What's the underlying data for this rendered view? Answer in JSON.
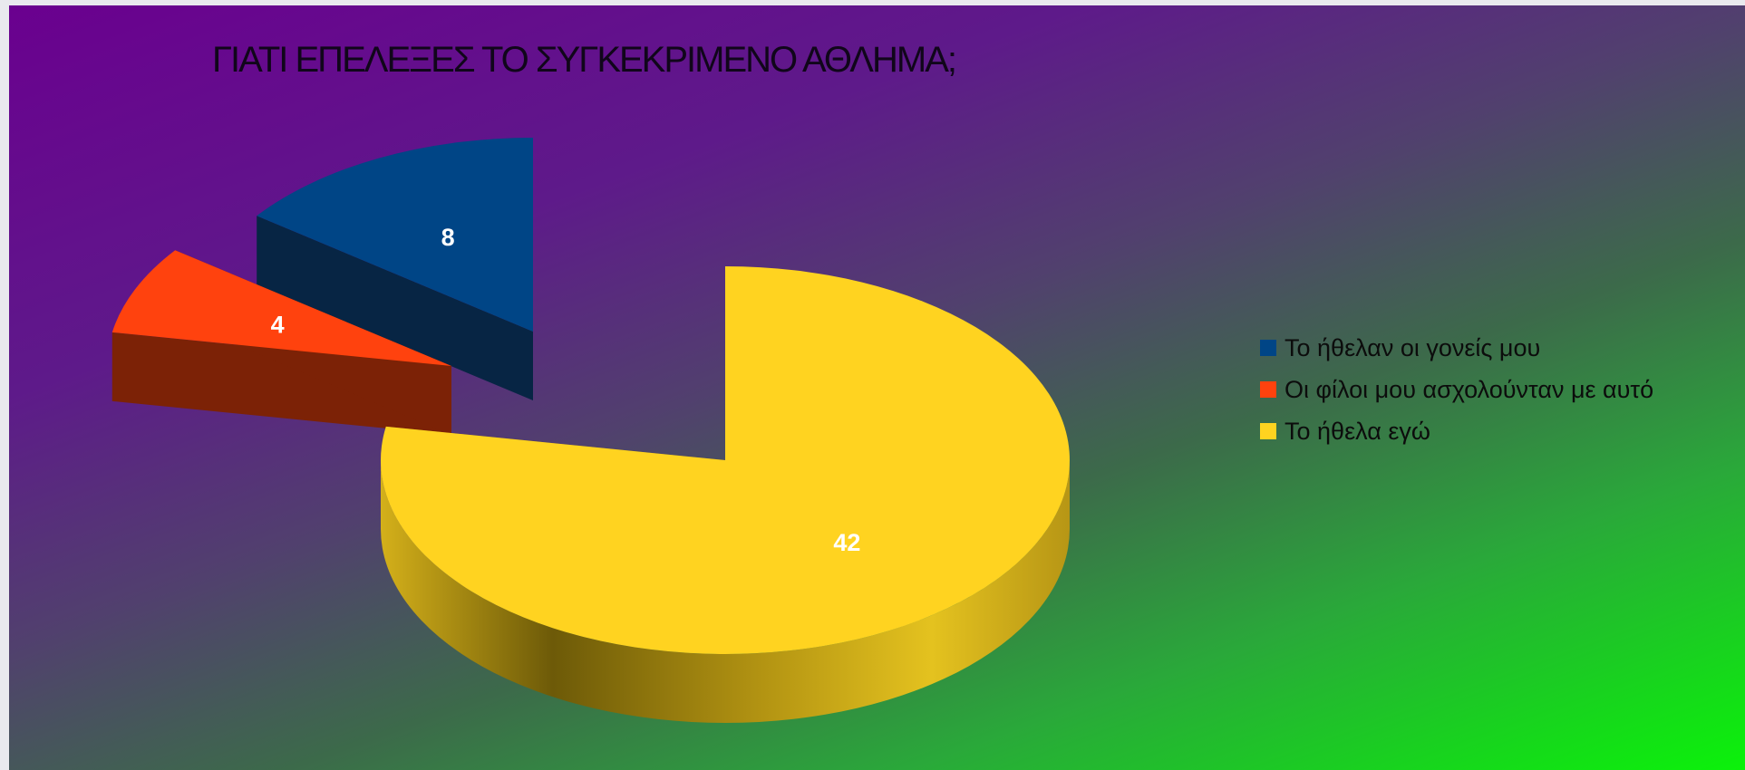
{
  "chart_data": {
    "type": "pie",
    "title": "ΓΙΑΤΙ  ΕΠΕΛΕΞΕΣ ΤΟ ΣΥΓΚΕΚΡΙΜΕΝΟ ΑΘΛΗΜΑ;",
    "style": "3d exploded pie",
    "legend_position": "right",
    "categories": [
      "Το ήθελαν οι γονείς μου",
      "Οι φίλοι μου ασχολούνταν με αυτό",
      "Το ήθελα εγώ"
    ],
    "values": [
      8,
      4,
      42
    ],
    "colors": [
      "#004586",
      "#ff420e",
      "#ffd320"
    ],
    "data_labels": [
      "8",
      "4",
      "42"
    ]
  }
}
